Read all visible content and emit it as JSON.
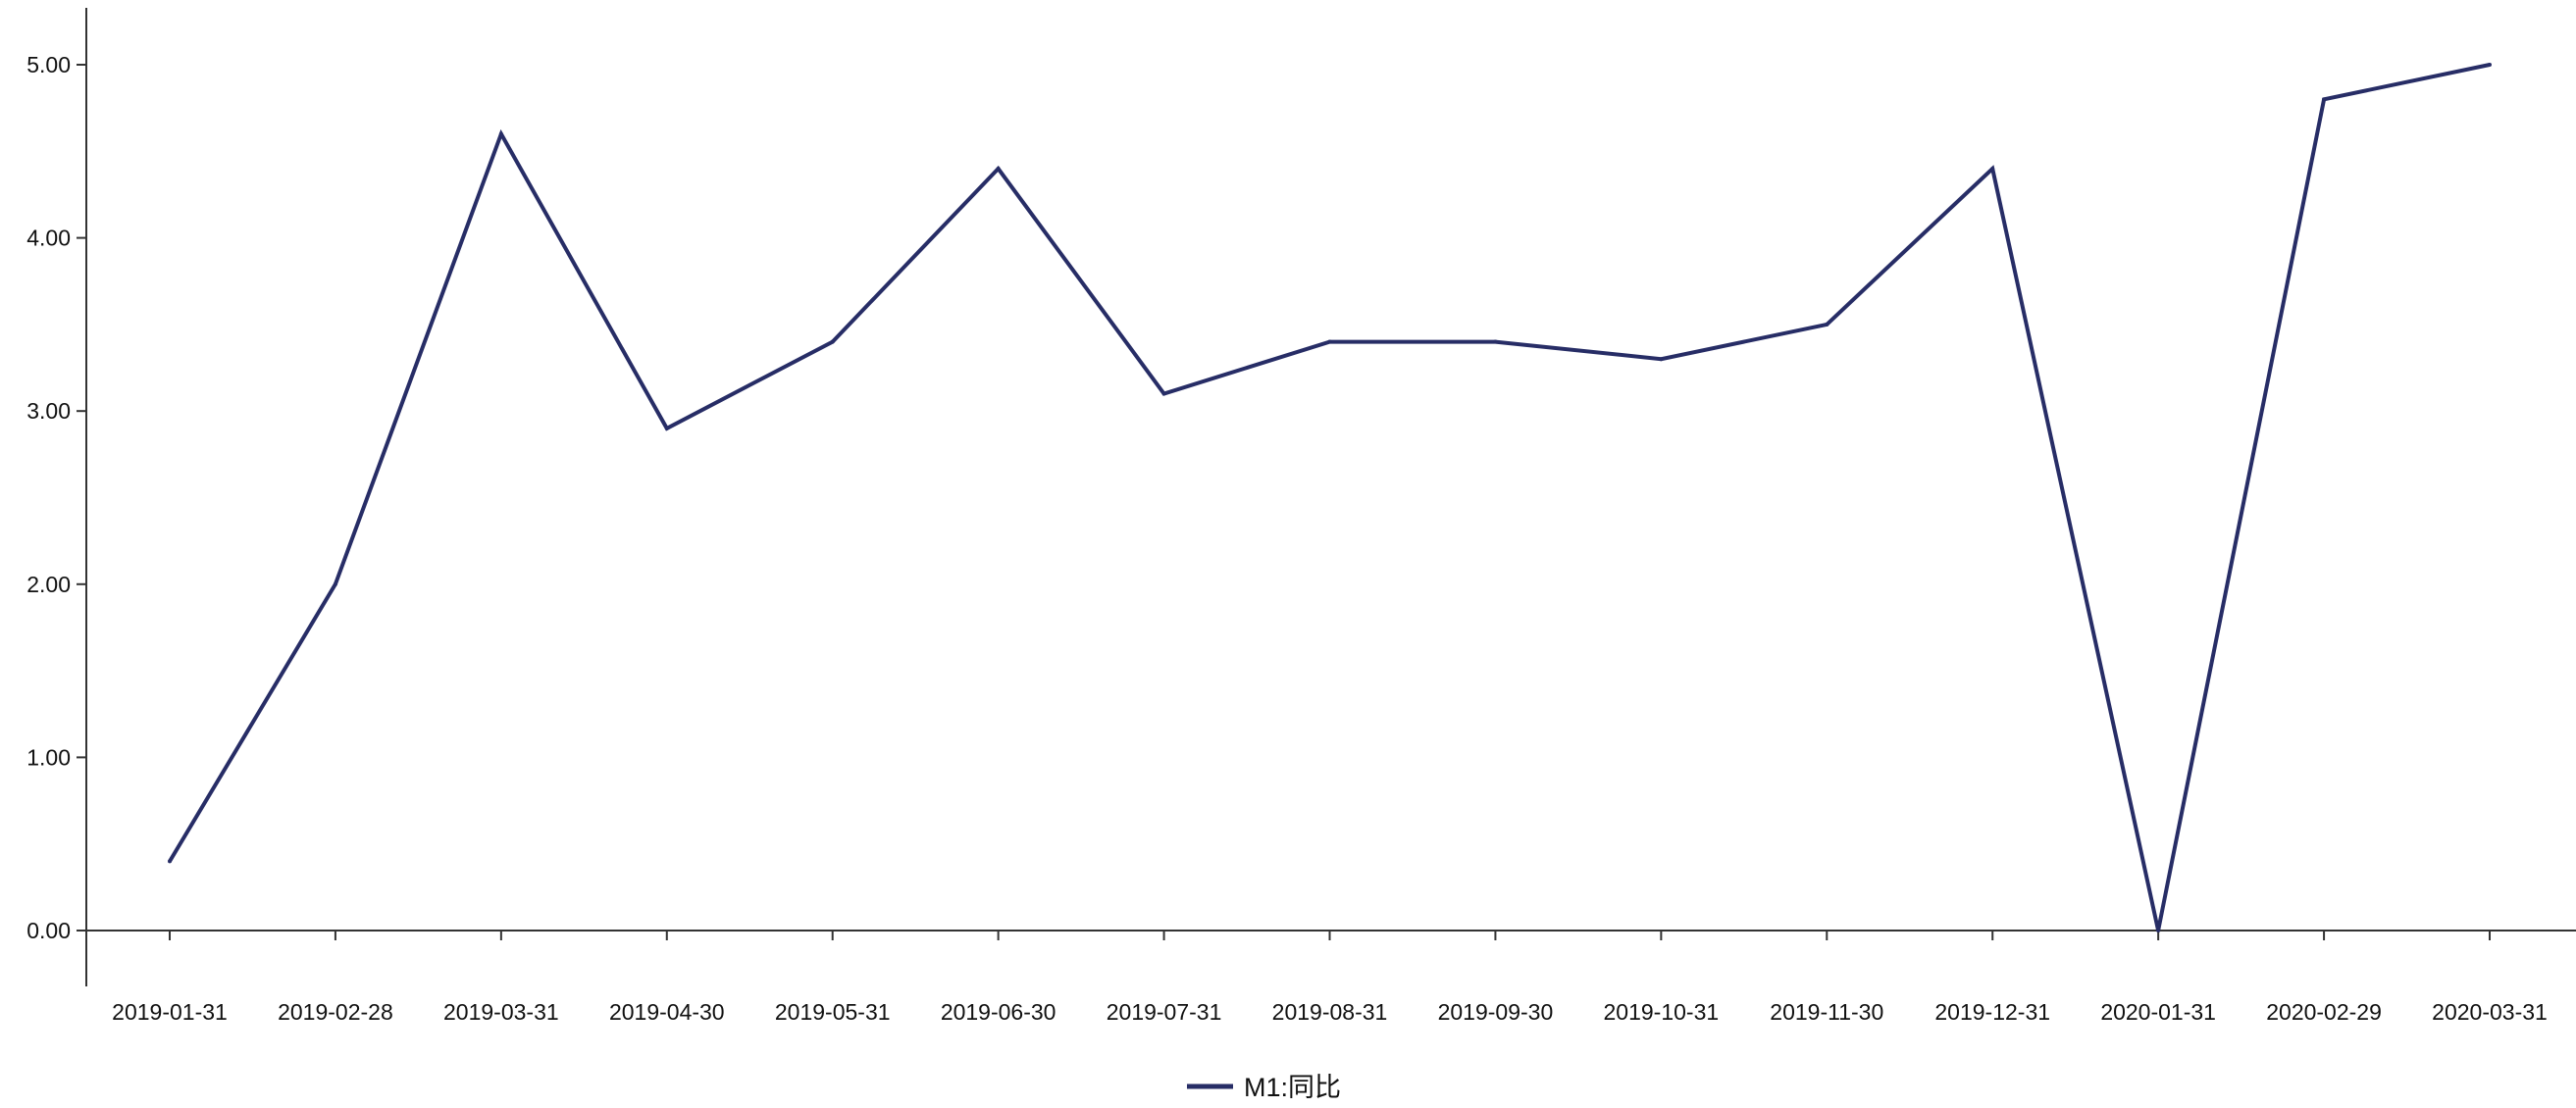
{
  "chart_data": {
    "type": "line",
    "x": [
      "2019-01-31",
      "2019-02-28",
      "2019-03-31",
      "2019-04-30",
      "2019-05-31",
      "2019-06-30",
      "2019-07-31",
      "2019-08-31",
      "2019-09-30",
      "2019-10-31",
      "2019-11-30",
      "2019-12-31",
      "2020-01-31",
      "2020-02-29",
      "2020-03-31"
    ],
    "series": [
      {
        "name": "M1:同比",
        "values": [
          0.4,
          2.0,
          4.6,
          2.9,
          3.4,
          4.4,
          3.1,
          3.4,
          3.4,
          3.3,
          3.5,
          4.4,
          0.0,
          4.8,
          5.0
        ],
        "color": "#272d66"
      }
    ],
    "yticks": [
      "0.00",
      "1.00",
      "2.00",
      "3.00",
      "4.00",
      "5.00"
    ],
    "ylim": [
      -0.33,
      5.32
    ],
    "xlabel": "",
    "ylabel": "",
    "title": "",
    "grid": false,
    "legend_position": "bottom-center"
  }
}
